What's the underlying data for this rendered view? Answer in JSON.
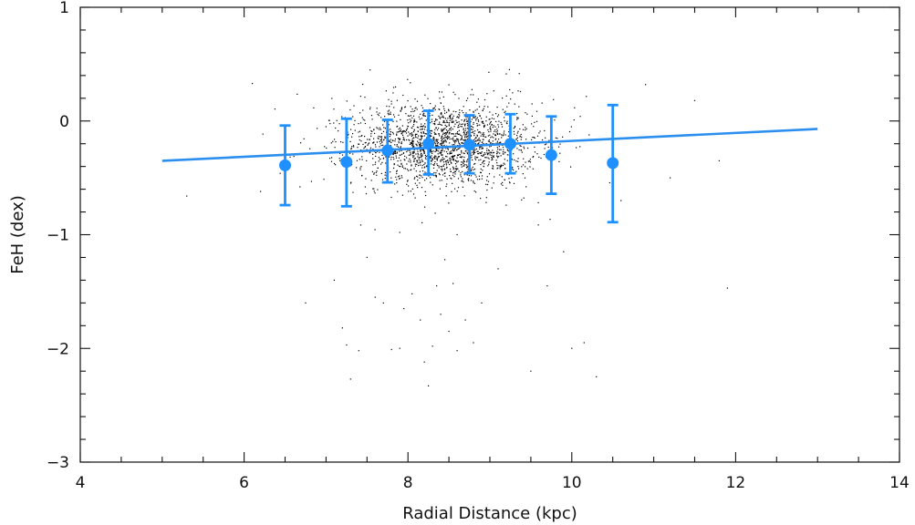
{
  "chart_data": {
    "type": "scatter",
    "xlabel": "Radial Distance (kpc)",
    "ylabel": "FeH (dex)",
    "xlim": [
      4,
      14
    ],
    "ylim": [
      -3,
      1
    ],
    "xticks": [
      4,
      6,
      8,
      10,
      12,
      14
    ],
    "yticks": [
      -3,
      -2,
      -1,
      0,
      1
    ],
    "x_minor_step": 0.5,
    "y_minor_step": 0.2,
    "grid": false,
    "colors": {
      "points": "#000000",
      "binned": "#1e90ff",
      "fit": "#2b8ff0"
    },
    "binned_points": [
      {
        "x": 6.5,
        "y": -0.39,
        "ylow": -0.74,
        "yhigh": -0.04
      },
      {
        "x": 7.25,
        "y": -0.36,
        "ylow": -0.75,
        "yhigh": 0.02
      },
      {
        "x": 7.75,
        "y": -0.26,
        "ylow": -0.54,
        "yhigh": 0.01
      },
      {
        "x": 8.25,
        "y": -0.2,
        "ylow": -0.47,
        "yhigh": 0.09
      },
      {
        "x": 8.75,
        "y": -0.21,
        "ylow": -0.46,
        "yhigh": 0.05
      },
      {
        "x": 9.25,
        "y": -0.2,
        "ylow": -0.46,
        "yhigh": 0.06
      },
      {
        "x": 9.75,
        "y": -0.3,
        "ylow": -0.64,
        "yhigh": 0.04
      },
      {
        "x": 10.5,
        "y": -0.37,
        "ylow": -0.89,
        "yhigh": 0.14
      }
    ],
    "fit_line": {
      "x": [
        5,
        13
      ],
      "y": [
        -0.35,
        -0.07
      ]
    },
    "scatter": {
      "n_points": 2000,
      "core": {
        "x_mean": 8.45,
        "x_sd": 0.55,
        "y_mean": -0.2,
        "y_sd": 0.18
      },
      "outliers": [
        [
          6.75,
          -1.6
        ],
        [
          7.1,
          -1.4
        ],
        [
          7.2,
          -1.82
        ],
        [
          7.25,
          -1.97
        ],
        [
          7.3,
          -2.27
        ],
        [
          7.4,
          -2.02
        ],
        [
          7.6,
          -1.55
        ],
        [
          7.7,
          -1.6
        ],
        [
          7.8,
          -2.01
        ],
        [
          7.9,
          -2.0
        ],
        [
          7.95,
          -1.65
        ],
        [
          8.05,
          -1.52
        ],
        [
          8.15,
          -1.75
        ],
        [
          8.2,
          -2.12
        ],
        [
          8.25,
          -2.33
        ],
        [
          8.3,
          -1.98
        ],
        [
          8.35,
          -1.45
        ],
        [
          8.4,
          -1.7
        ],
        [
          8.45,
          -1.22
        ],
        [
          8.5,
          -1.85
        ],
        [
          8.55,
          -1.43
        ],
        [
          8.6,
          -2.02
        ],
        [
          8.7,
          -1.75
        ],
        [
          8.8,
          -1.95
        ],
        [
          8.9,
          -1.6
        ],
        [
          9.5,
          -2.2
        ],
        [
          9.7,
          -1.45
        ],
        [
          10.0,
          -2.0
        ],
        [
          10.15,
          -1.95
        ],
        [
          10.3,
          -2.25
        ],
        [
          11.9,
          -1.47
        ],
        [
          8.6,
          -1.0
        ],
        [
          7.5,
          -1.2
        ],
        [
          9.1,
          -1.3
        ],
        [
          10.6,
          -0.7
        ],
        [
          6.2,
          -0.62
        ],
        [
          5.3,
          -0.66
        ],
        [
          11.2,
          -0.5
        ],
        [
          11.5,
          0.18
        ],
        [
          10.9,
          0.32
        ],
        [
          6.1,
          0.33
        ],
        [
          7.0,
          -0.05
        ],
        [
          11.8,
          -0.35
        ],
        [
          9.9,
          -1.15
        ],
        [
          7.9,
          -0.98
        ]
      ]
    }
  }
}
